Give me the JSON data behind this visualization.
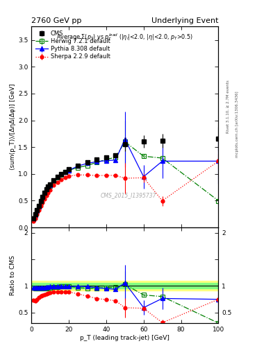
{
  "title_left": "2760 GeV pp",
  "title_right": "Underlying Event",
  "plot_title": "Average Σ(p_T) vs p_T^{lead} (|η_l|<2.0, |η|<2.0, p_T>0.5)",
  "xlabel": "p_T (leading track-jet) [GeV]",
  "ylabel_main": "⟨sum(p_T)⟩/[ΔηΔ(Δφ)] [GeV]",
  "ylabel_ratio": "Ratio to CMS",
  "right_label_top": "Rivet 3.1.10, ≥ 2.7M events",
  "right_label_bot": "mcplots.cern.ch [arXiv:1306.3436]",
  "watermark": "CMS_2015_I1395737",
  "cms_x": [
    1.0,
    2.0,
    3.0,
    4.0,
    5.0,
    6.0,
    7.0,
    8.0,
    9.0,
    10.0,
    12.0,
    14.0,
    16.0,
    18.0,
    20.0,
    25.0,
    30.0,
    35.0,
    40.0,
    45.0,
    50.0,
    60.0,
    70.0,
    100.0
  ],
  "cms_y": [
    0.163,
    0.243,
    0.325,
    0.408,
    0.493,
    0.57,
    0.645,
    0.71,
    0.762,
    0.803,
    0.887,
    0.951,
    1.001,
    1.042,
    1.082,
    1.156,
    1.215,
    1.271,
    1.312,
    1.348,
    1.558,
    1.605,
    1.622,
    1.658
  ],
  "cms_yerr": [
    0.008,
    0.008,
    0.008,
    0.008,
    0.008,
    0.008,
    0.008,
    0.008,
    0.008,
    0.008,
    0.008,
    0.008,
    0.01,
    0.01,
    0.01,
    0.015,
    0.02,
    0.025,
    0.04,
    0.04,
    0.13,
    0.12,
    0.13,
    0.22
  ],
  "herwig_x": [
    1.0,
    2.0,
    3.0,
    4.0,
    5.0,
    6.0,
    7.0,
    8.0,
    9.0,
    10.0,
    12.0,
    14.0,
    16.0,
    18.0,
    20.0,
    25.0,
    30.0,
    35.0,
    40.0,
    45.0,
    50.0,
    60.0,
    70.0,
    100.0
  ],
  "herwig_y": [
    0.158,
    0.232,
    0.31,
    0.388,
    0.466,
    0.543,
    0.615,
    0.678,
    0.733,
    0.779,
    0.864,
    0.932,
    0.988,
    1.033,
    1.068,
    1.12,
    1.158,
    1.215,
    1.27,
    1.31,
    1.6,
    1.33,
    1.295,
    0.498
  ],
  "herwig_yerr": [
    0.003,
    0.003,
    0.003,
    0.003,
    0.003,
    0.003,
    0.003,
    0.003,
    0.003,
    0.003,
    0.003,
    0.004,
    0.004,
    0.004,
    0.005,
    0.006,
    0.008,
    0.01,
    0.015,
    0.02,
    0.4,
    0.04,
    0.05,
    0.07
  ],
  "pythia_x": [
    1.0,
    2.0,
    3.0,
    4.0,
    5.0,
    6.0,
    7.0,
    8.0,
    9.0,
    10.0,
    12.0,
    14.0,
    16.0,
    18.0,
    20.0,
    25.0,
    30.0,
    35.0,
    40.0,
    45.0,
    50.0,
    60.0,
    70.0,
    100.0
  ],
  "pythia_y": [
    0.157,
    0.233,
    0.313,
    0.393,
    0.474,
    0.552,
    0.626,
    0.692,
    0.748,
    0.793,
    0.878,
    0.943,
    0.993,
    1.033,
    1.068,
    1.148,
    1.198,
    1.228,
    1.248,
    1.258,
    1.648,
    0.948,
    1.238,
    1.238
  ],
  "pythia_yerr": [
    0.003,
    0.003,
    0.003,
    0.003,
    0.003,
    0.003,
    0.003,
    0.003,
    0.003,
    0.003,
    0.003,
    0.004,
    0.004,
    0.004,
    0.005,
    0.007,
    0.01,
    0.015,
    0.02,
    0.04,
    0.52,
    0.22,
    0.32,
    0.42
  ],
  "sherpa_x": [
    1.0,
    2.0,
    3.0,
    4.0,
    5.0,
    6.0,
    7.0,
    8.0,
    9.0,
    10.0,
    12.0,
    14.0,
    16.0,
    18.0,
    20.0,
    25.0,
    30.0,
    35.0,
    40.0,
    45.0,
    50.0,
    60.0,
    70.0,
    100.0
  ],
  "sherpa_y": [
    0.118,
    0.173,
    0.243,
    0.318,
    0.397,
    0.468,
    0.537,
    0.598,
    0.652,
    0.696,
    0.786,
    0.843,
    0.892,
    0.928,
    0.958,
    0.982,
    0.978,
    0.968,
    0.972,
    0.972,
    0.918,
    0.928,
    0.498,
    1.238
  ],
  "sherpa_yerr": [
    0.003,
    0.003,
    0.003,
    0.003,
    0.003,
    0.003,
    0.003,
    0.003,
    0.003,
    0.003,
    0.004,
    0.004,
    0.004,
    0.004,
    0.005,
    0.006,
    0.008,
    0.012,
    0.015,
    0.02,
    0.28,
    0.08,
    0.09,
    0.14
  ],
  "band_outer_color": "#ffff80",
  "band_inner_color": "#80ff80",
  "ylim_main": [
    0.0,
    3.75
  ],
  "ylim_ratio": [
    0.3,
    2.1
  ],
  "xlim": [
    0.0,
    100.0
  ],
  "yticks_main": [
    0.0,
    0.5,
    1.0,
    1.5,
    2.0,
    2.5,
    3.0,
    3.5
  ],
  "yticks_ratio": [
    0.5,
    1.0,
    1.5,
    2.0
  ]
}
